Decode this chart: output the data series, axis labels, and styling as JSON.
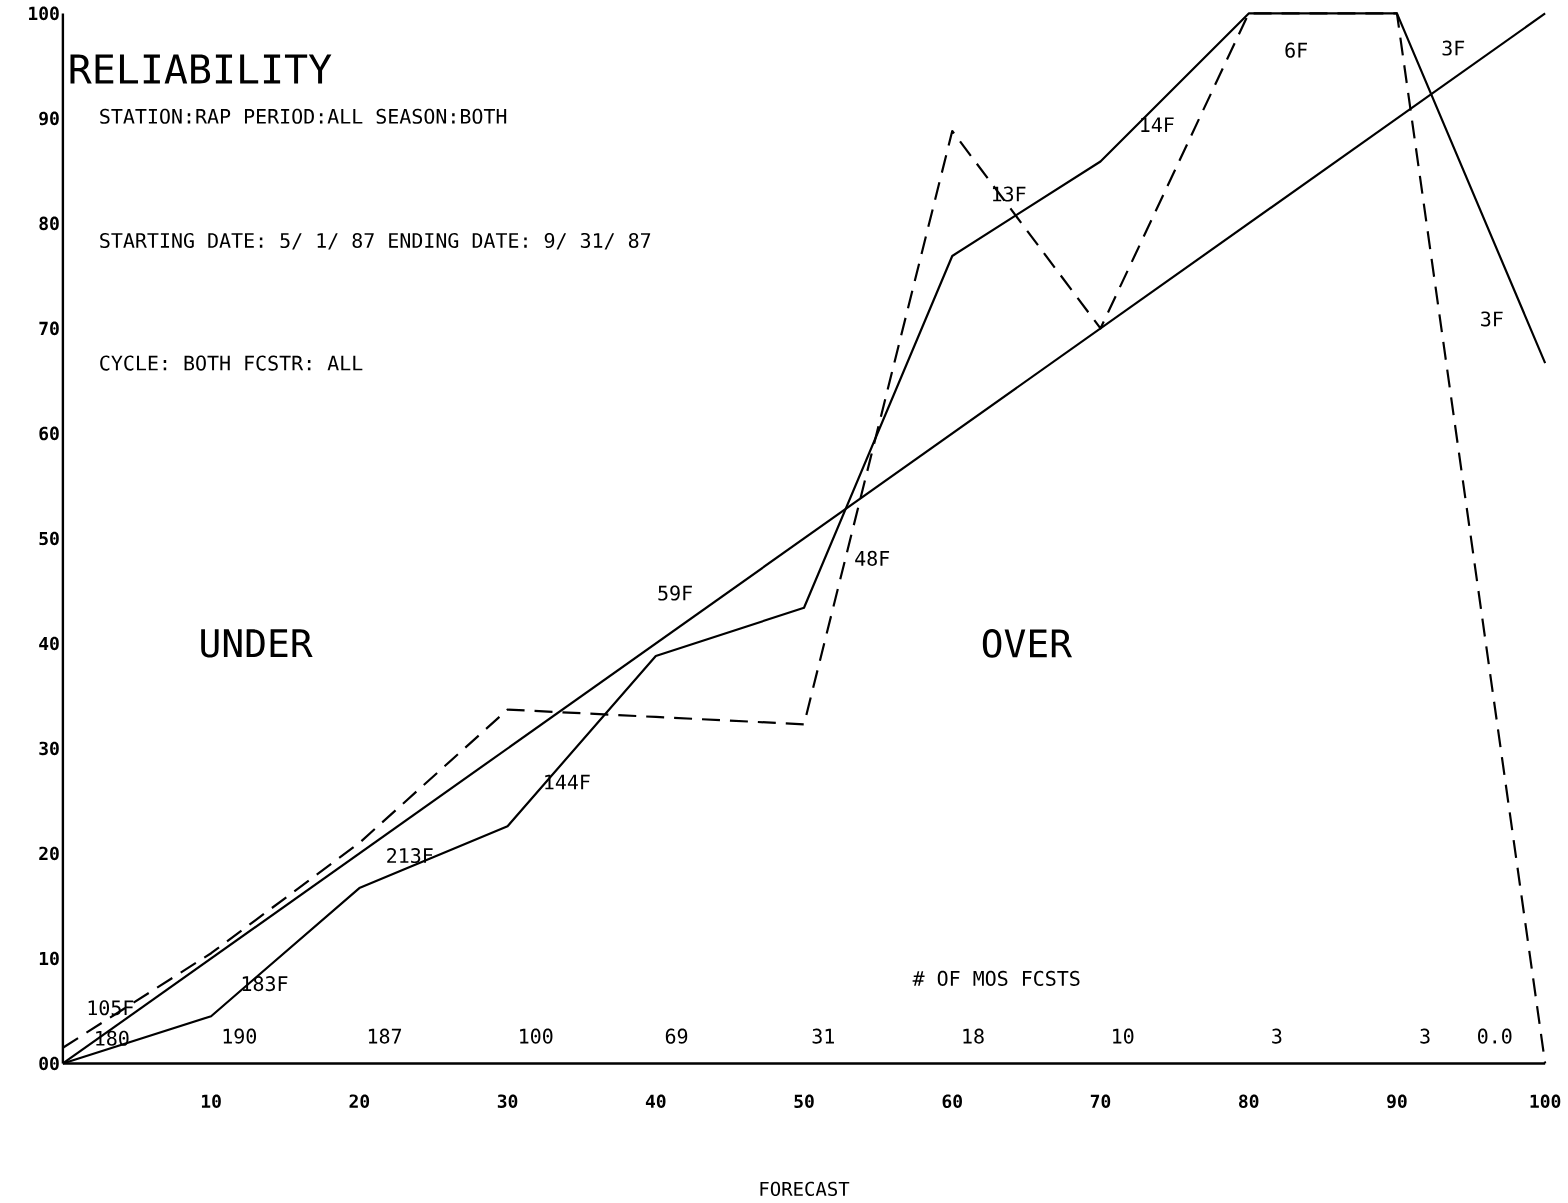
{
  "chart_data": {
    "type": "line",
    "title": "RELIABILITY",
    "xlabel": "FORECAST",
    "xlim": [
      0,
      100
    ],
    "ylim": [
      0,
      100
    ],
    "xticks": [
      10,
      20,
      30,
      40,
      50,
      60,
      70,
      80,
      90,
      100
    ],
    "yticks": [
      {
        "value": 0,
        "label": "00"
      },
      10,
      20,
      30,
      40,
      50,
      60,
      70,
      80,
      90,
      100
    ],
    "series": [
      {
        "color": "#000000",
        "line_style": "solid",
        "x": [
          0,
          100
        ],
        "values": [
          0,
          100
        ]
      },
      {
        "color": "#000000",
        "line_style": "solid",
        "x": [
          0,
          10,
          20,
          30,
          40,
          50,
          60,
          70,
          80,
          90,
          100
        ],
        "values": [
          0,
          4.5,
          16.7,
          22.6,
          38.8,
          43.4,
          76.9,
          85.9,
          100,
          100,
          66.7
        ]
      },
      {
        "color": "#000000",
        "line_style": "dashed",
        "x": [
          0,
          10,
          20,
          30,
          40,
          50,
          60,
          70,
          80,
          90,
          100
        ],
        "values": [
          1.5,
          10.5,
          21,
          33.7,
          33,
          32.3,
          88.8,
          70,
          100,
          100,
          0
        ]
      }
    ],
    "annotations": [
      "STATION:RAP PERIOD:ALL  SEASON:BOTH",
      "STARTING DATE: 5/  1/ 87 ENDING DATE:  9/ 31/ 87",
      "CYCLE:  BOTH  FCSTR:    ALL",
      "UNDER",
      "OVER",
      "# OF MOS FCSTS",
      "105F",
      "183F",
      "213F",
      "144F",
      "59F",
      "48F",
      "13F",
      "14F",
      "6F",
      "3F",
      "3F",
      "180",
      "190",
      "187",
      "100",
      "69",
      "31",
      "18",
      "10",
      "3",
      "3",
      "0.0"
    ]
  }
}
